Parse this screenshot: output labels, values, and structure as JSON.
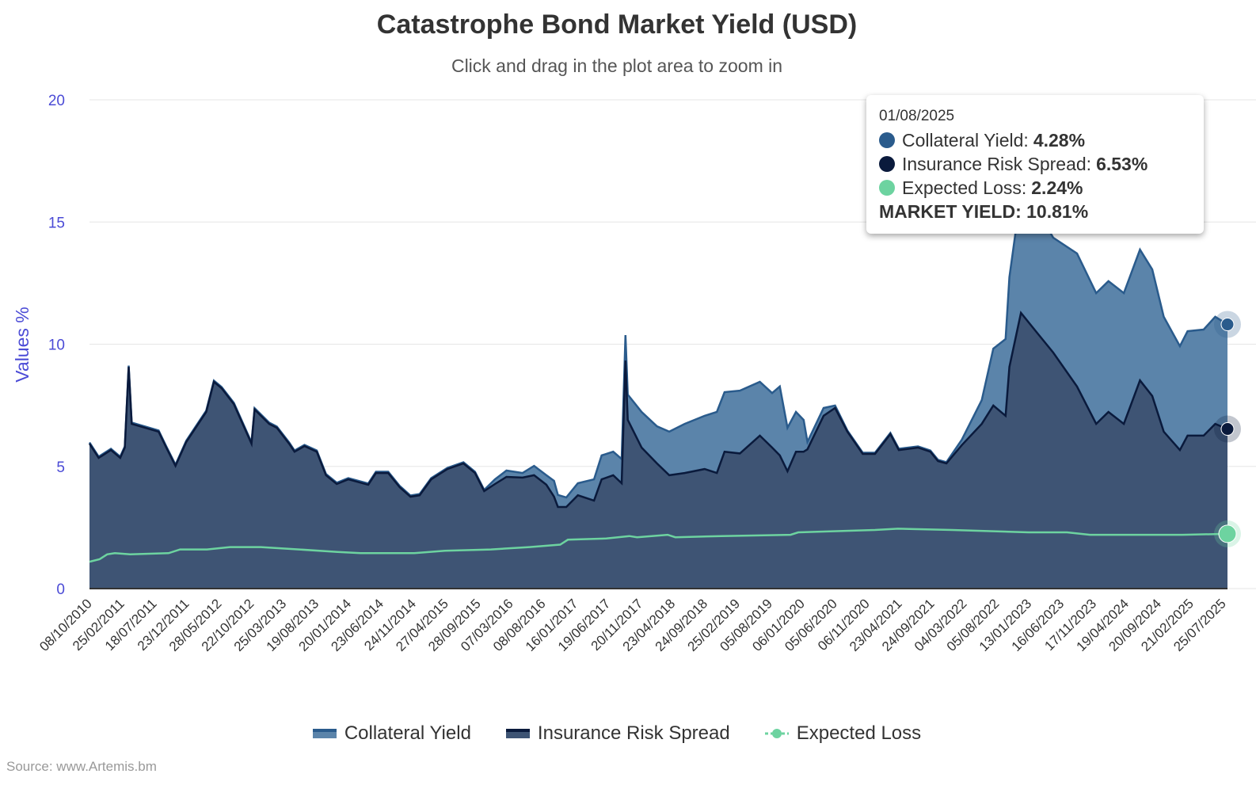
{
  "title": "Catastrophe Bond Market Yield (USD)",
  "subtitle": "Click and drag in the plot area to zoom in",
  "source": "Source: www.Artemis.bm",
  "tooltip": {
    "date": "01/08/2025",
    "rows": [
      {
        "label": "Collateral Yield:",
        "value": "4.28%",
        "color": "#2a5b8c"
      },
      {
        "label": "Insurance Risk Spread:",
        "value": "6.53%",
        "color": "#0a1a3c"
      },
      {
        "label": "Expected Loss:",
        "value": "2.24%",
        "color": "#6dd3a0"
      }
    ],
    "total": "MARKET YIELD: 10.81%"
  },
  "colors": {
    "collateral_fill": "#5b84aa",
    "collateral_line": "#2a5b8c",
    "spread_fill": "#3e5474",
    "spread_line": "#0a1a3c",
    "expected_loss": "#6dd3a0",
    "axis_label": "#4b4bd6",
    "grid": "#e6e6e6"
  },
  "chart_data": {
    "type": "area",
    "stacked": true,
    "title": "Catastrophe Bond Market Yield (USD)",
    "xlabel": "",
    "ylabel": "Values %",
    "ylim": [
      0,
      20
    ],
    "xlim_years": [
      2010.77,
      2025.59
    ],
    "yticks": [
      "0",
      "5",
      "10",
      "15",
      "20"
    ],
    "xtick_labels": [
      "08/10/2010",
      "25/02/2011",
      "18/07/2011",
      "23/12/2011",
      "28/05/2012",
      "22/10/2012",
      "25/03/2013",
      "19/08/2013",
      "20/01/2014",
      "23/06/2014",
      "24/11/2014",
      "27/04/2015",
      "28/09/2015",
      "07/03/2016",
      "08/08/2016",
      "16/01/2017",
      "19/06/2017",
      "20/11/2017",
      "23/04/2018",
      "24/09/2018",
      "25/02/2019",
      "05/08/2019",
      "06/01/2020",
      "05/06/2020",
      "06/11/2020",
      "23/04/2021",
      "24/09/2021",
      "04/03/2022",
      "05/08/2022",
      "13/01/2023",
      "16/06/2023",
      "17/11/2023",
      "19/04/2024",
      "20/09/2024",
      "21/02/2025",
      "25/07/2025"
    ],
    "legend": [
      "Collateral Yield",
      "Insurance Risk Spread",
      "Expected Loss"
    ],
    "legend_position": "bottom",
    "x_years": [
      2010.77,
      2010.89,
      2011.05,
      2011.17,
      2011.23,
      2011.28,
      2011.32,
      2011.67,
      2011.77,
      2011.89,
      2012.03,
      2012.29,
      2012.39,
      2012.49,
      2012.65,
      2012.88,
      2012.92,
      2013.11,
      2013.21,
      2013.37,
      2013.44,
      2013.57,
      2013.73,
      2013.85,
      2013.99,
      2014.14,
      2014.4,
      2014.5,
      2014.66,
      2014.81,
      2014.95,
      2015.07,
      2015.22,
      2015.43,
      2015.64,
      2015.79,
      2015.91,
      2016.05,
      2016.2,
      2016.41,
      2016.56,
      2016.72,
      2016.82,
      2016.87,
      2016.98,
      2017.13,
      2017.34,
      2017.44,
      2017.59,
      2017.7,
      2017.75,
      2017.78,
      2017.96,
      2018.16,
      2018.32,
      2018.52,
      2018.78,
      2018.94,
      2019.04,
      2019.24,
      2019.5,
      2019.66,
      2019.76,
      2019.86,
      2019.97,
      2020.07,
      2020.12,
      2020.33,
      2020.48,
      2020.64,
      2020.84,
      2021.0,
      2021.2,
      2021.31,
      2021.56,
      2021.72,
      2021.82,
      2021.93,
      2022.13,
      2022.39,
      2022.54,
      2022.7,
      2022.75,
      2022.9,
      2023.11,
      2023.32,
      2023.63,
      2023.88,
      2024.04,
      2024.24,
      2024.45,
      2024.61,
      2024.76,
      2024.97,
      2025.07,
      2025.28,
      2025.43,
      2025.59
    ],
    "series": [
      {
        "name": "Insurance Risk Spread",
        "values": [
          5.93,
          5.35,
          5.67,
          5.35,
          5.77,
          9.07,
          6.74,
          6.42,
          5.77,
          5.02,
          6.0,
          7.23,
          8.46,
          8.2,
          7.55,
          5.93,
          7.33,
          6.74,
          6.58,
          5.93,
          5.6,
          5.83,
          5.6,
          4.64,
          4.28,
          4.47,
          4.25,
          4.73,
          4.73,
          4.15,
          3.76,
          3.82,
          4.47,
          4.89,
          5.12,
          4.73,
          3.99,
          4.28,
          4.57,
          4.54,
          4.64,
          4.25,
          3.76,
          3.34,
          3.34,
          3.82,
          3.6,
          4.47,
          4.64,
          4.31,
          9.33,
          6.9,
          5.77,
          5.12,
          4.64,
          4.73,
          4.89,
          4.73,
          5.6,
          5.53,
          6.26,
          5.77,
          5.45,
          4.8,
          5.6,
          5.6,
          5.7,
          7.07,
          7.39,
          6.42,
          5.51,
          5.51,
          6.32,
          5.67,
          5.77,
          5.6,
          5.22,
          5.12,
          5.87,
          6.74,
          7.49,
          7.07,
          9.07,
          11.28,
          10.47,
          9.66,
          8.27,
          6.74,
          7.23,
          6.74,
          8.52,
          7.88,
          6.42,
          5.67,
          6.26,
          6.26,
          6.74,
          6.53
        ]
      },
      {
        "name": "Collateral Yield",
        "values": [
          0.05,
          0.05,
          0.05,
          0.05,
          0.05,
          0.05,
          0.05,
          0.05,
          0.05,
          0.05,
          0.05,
          0.05,
          0.05,
          0.05,
          0.05,
          0.05,
          0.05,
          0.05,
          0.05,
          0.05,
          0.05,
          0.05,
          0.05,
          0.05,
          0.05,
          0.05,
          0.05,
          0.05,
          0.05,
          0.05,
          0.05,
          0.05,
          0.05,
          0.05,
          0.05,
          0.05,
          0.05,
          0.19,
          0.26,
          0.19,
          0.38,
          0.39,
          0.65,
          0.49,
          0.39,
          0.49,
          0.87,
          0.98,
          0.96,
          0.99,
          1.04,
          1.04,
          1.46,
          1.52,
          1.78,
          2.01,
          2.18,
          2.5,
          2.44,
          2.57,
          2.2,
          2.23,
          2.82,
          1.78,
          1.63,
          1.3,
          0.3,
          0.32,
          0.1,
          0.05,
          0.05,
          0.05,
          0.05,
          0.05,
          0.05,
          0.05,
          0.05,
          0.05,
          0.22,
          0.97,
          2.33,
          3.14,
          3.67,
          4.9,
          5.03,
          4.7,
          5.44,
          5.35,
          5.35,
          5.35,
          5.35,
          5.18,
          4.7,
          4.25,
          4.27,
          4.34,
          4.38,
          4.28
        ]
      },
      {
        "name": "Expected Loss",
        "x_years": [
          2010.77,
          2010.9,
          2011.0,
          2011.1,
          2011.3,
          2011.8,
          2011.95,
          2012.3,
          2012.6,
          2013.0,
          2013.5,
          2014.0,
          2014.3,
          2015.0,
          2015.4,
          2016.0,
          2016.5,
          2016.9,
          2017.0,
          2017.5,
          2017.8,
          2017.9,
          2018.3,
          2018.4,
          2019.0,
          2019.9,
          2020.0,
          2020.5,
          2021.0,
          2021.3,
          2022.0,
          2022.5,
          2023.0,
          2023.5,
          2023.8,
          2024.5,
          2025.0,
          2025.59
        ],
        "values": [
          1.1,
          1.2,
          1.4,
          1.45,
          1.4,
          1.45,
          1.6,
          1.6,
          1.7,
          1.7,
          1.6,
          1.5,
          1.45,
          1.45,
          1.55,
          1.6,
          1.7,
          1.8,
          2.0,
          2.05,
          2.15,
          2.1,
          2.2,
          2.1,
          2.15,
          2.2,
          2.3,
          2.35,
          2.4,
          2.45,
          2.4,
          2.35,
          2.3,
          2.3,
          2.2,
          2.2,
          2.2,
          2.24
        ]
      }
    ]
  }
}
